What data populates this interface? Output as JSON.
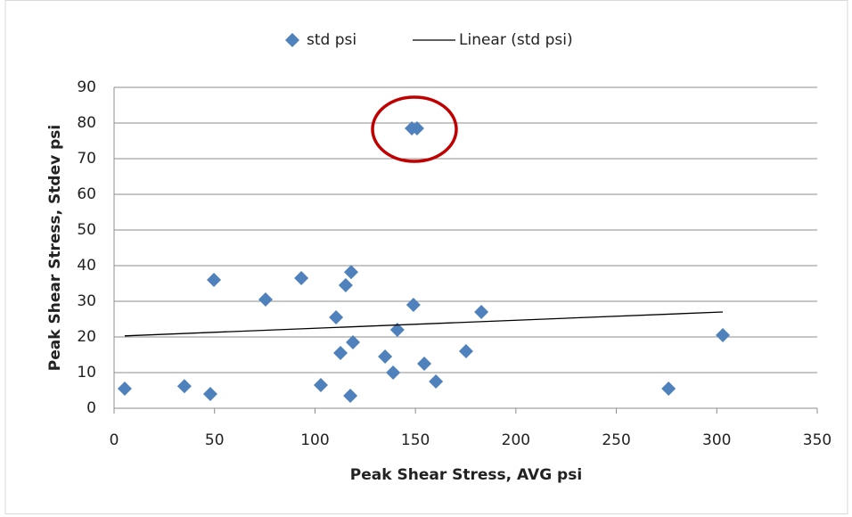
{
  "chart_data": {
    "type": "scatter",
    "x_label": "Peak Shear Stress, AVG psi",
    "y_label": "Peak Shear Stress, Stdev psi",
    "xlim": [
      0,
      350
    ],
    "xticks": [
      0,
      50,
      100,
      150,
      200,
      250,
      300,
      350
    ],
    "ylim": [
      0,
      90
    ],
    "yticks": [
      0,
      10,
      20,
      30,
      40,
      50,
      60,
      70,
      80,
      90
    ],
    "grid": true,
    "legend": "top",
    "series": [
      {
        "name": "std psi",
        "color": "#4f81bd",
        "mark": "diamond",
        "x": [
          5.3,
          35,
          47.9,
          49.7,
          75.4,
          93.2,
          102.9,
          110.5,
          112.7,
          115.3,
          118,
          117.6,
          118.9,
          134.9,
          138.9,
          141,
          148.2,
          150.8,
          149,
          154.4,
          160.2,
          175.2,
          182.8,
          276,
          303
        ],
        "values": [
          5.5,
          6.2,
          4,
          36,
          30.5,
          36.5,
          6.5,
          25.5,
          15.5,
          34.5,
          38.2,
          3.5,
          18.5,
          14.5,
          10,
          22,
          78.5,
          78.5,
          29,
          12.5,
          7.5,
          16,
          27,
          5.5,
          20.5
        ]
      },
      {
        "name": "Linear (std psi)",
        "color": "#000000",
        "mark": "line",
        "x": [
          5.3,
          303
        ],
        "values": [
          20.3,
          27
        ]
      }
    ]
  }
}
